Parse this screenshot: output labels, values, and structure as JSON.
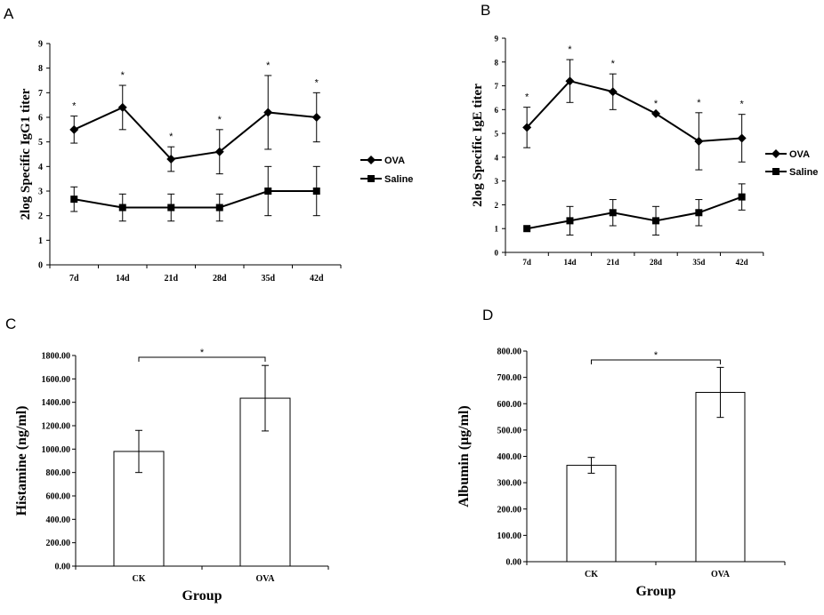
{
  "chart_data": [
    {
      "panel": "A",
      "type": "line",
      "ylabel": "2log Specific IgG1 titer",
      "ylim": [
        0,
        9
      ],
      "yticks": [
        "0",
        "1",
        "2",
        "3",
        "4",
        "5",
        "6",
        "7",
        "8",
        "9"
      ],
      "categories": [
        "7d",
        "14d",
        "21d",
        "28d",
        "35d",
        "42d"
      ],
      "series": [
        {
          "name": "OVA",
          "marker": "diamond",
          "values": [
            5.5,
            6.4,
            4.3,
            4.6,
            6.2,
            6.0
          ],
          "errors": [
            0.55,
            0.9,
            0.5,
            0.9,
            1.5,
            1.0
          ]
        },
        {
          "name": "Saline",
          "marker": "square",
          "values": [
            2.67,
            2.33,
            2.33,
            2.33,
            3.0,
            3.0
          ],
          "errors": [
            0.5,
            0.55,
            0.55,
            0.55,
            1.0,
            1.0
          ]
        }
      ],
      "annotations": [
        "*",
        "*",
        "*",
        "*",
        "*",
        "*"
      ],
      "legend": "right"
    },
    {
      "panel": "B",
      "type": "line",
      "ylabel": "2log Specific IgE titer",
      "ylim": [
        0,
        9
      ],
      "yticks": [
        "0",
        "1",
        "2",
        "3",
        "4",
        "5",
        "6",
        "7",
        "8",
        "9"
      ],
      "categories": [
        "7d",
        "14d",
        "21d",
        "28d",
        "35d",
        "42d"
      ],
      "series": [
        {
          "name": "OVA",
          "marker": "diamond",
          "values": [
            5.25,
            7.2,
            6.75,
            5.83,
            4.67,
            4.8
          ],
          "errors": [
            0.85,
            0.9,
            0.75,
            0.0,
            1.2,
            1.0
          ]
        },
        {
          "name": "Saline",
          "marker": "square",
          "values": [
            1.0,
            1.33,
            1.67,
            1.33,
            1.67,
            2.33
          ],
          "errors": [
            0.0,
            0.6,
            0.55,
            0.6,
            0.55,
            0.55
          ]
        }
      ],
      "annotations": [
        "*",
        "*",
        "*",
        "*",
        "*",
        "*"
      ],
      "legend": "right"
    },
    {
      "panel": "C",
      "type": "bar",
      "xlabel": "Group",
      "ylabel": "Histamine (ng/ml)",
      "ylim": [
        0,
        1800
      ],
      "yticks": [
        "0.00",
        "200.00",
        "400.00",
        "600.00",
        "800.00",
        "1000.00",
        "1200.00",
        "1400.00",
        "1600.00",
        "1800.00"
      ],
      "categories": [
        "CK",
        "OVA"
      ],
      "values": [
        980,
        1435
      ],
      "errors": [
        180,
        280
      ],
      "significance": "*"
    },
    {
      "panel": "D",
      "type": "bar",
      "xlabel": "Group",
      "ylabel": "Albumin (μg/ml)",
      "ylim": [
        0,
        800
      ],
      "yticks": [
        "0.00",
        "100.00",
        "200.00",
        "300.00",
        "400.00",
        "500.00",
        "600.00",
        "700.00",
        "800.00"
      ],
      "categories": [
        "CK",
        "OVA"
      ],
      "values": [
        366,
        643
      ],
      "errors": [
        30,
        95
      ],
      "significance": "*"
    }
  ]
}
